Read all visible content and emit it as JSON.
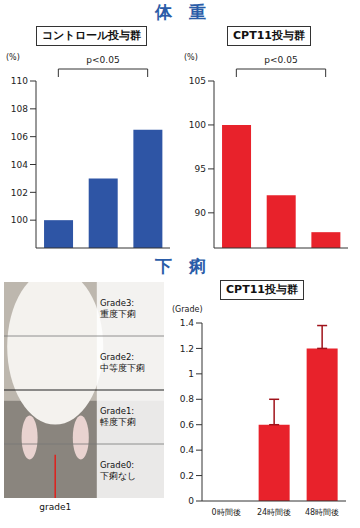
{
  "section_titles": [
    "体　重",
    "下　痢"
  ],
  "chart_data": [
    {
      "type": "bar",
      "title": "コントロール投与群",
      "y_label": "(%)",
      "categories": [
        null,
        null,
        null
      ],
      "values": [
        100,
        103,
        106.5
      ],
      "color": "#2e55a5",
      "ylim": [
        98,
        110
      ],
      "yticks": [
        100,
        102,
        104,
        106,
        108,
        110
      ],
      "tick_labels": "y",
      "annotation": "p<0.05"
    },
    {
      "type": "bar",
      "title": "CPT11投与群",
      "y_label": "(%)",
      "categories": [
        null,
        null,
        null
      ],
      "values": [
        100,
        92,
        87.8
      ],
      "color": "#e8222b",
      "ylim": [
        86,
        105
      ],
      "yticks": [
        90,
        95,
        100,
        105
      ],
      "tick_labels": "y",
      "annotation": "p<0.05"
    },
    {
      "type": "bar",
      "title": "CPT11投与群",
      "y_label": "(Grade)",
      "categories": [
        "0時間後",
        "24時間後",
        "48時間後"
      ],
      "values": [
        0,
        0.6,
        1.2
      ],
      "errors": [
        null,
        0.2,
        0.18
      ],
      "color": "#e8222b",
      "ylim": [
        0,
        1.4
      ],
      "yticks": [
        0,
        0.2,
        0.4,
        0.6,
        0.8,
        1,
        1.2,
        1.4
      ]
    }
  ],
  "diagram": {
    "grades": [
      {
        "grade": "Grade3:",
        "text": "重度下痢"
      },
      {
        "grade": "Grade2:",
        "text": "中等度下痢"
      },
      {
        "grade": "Grade1:",
        "text": "軽度下痢"
      },
      {
        "grade": "Grade0:",
        "text": "下痢なし"
      }
    ],
    "marker": "grade1"
  }
}
